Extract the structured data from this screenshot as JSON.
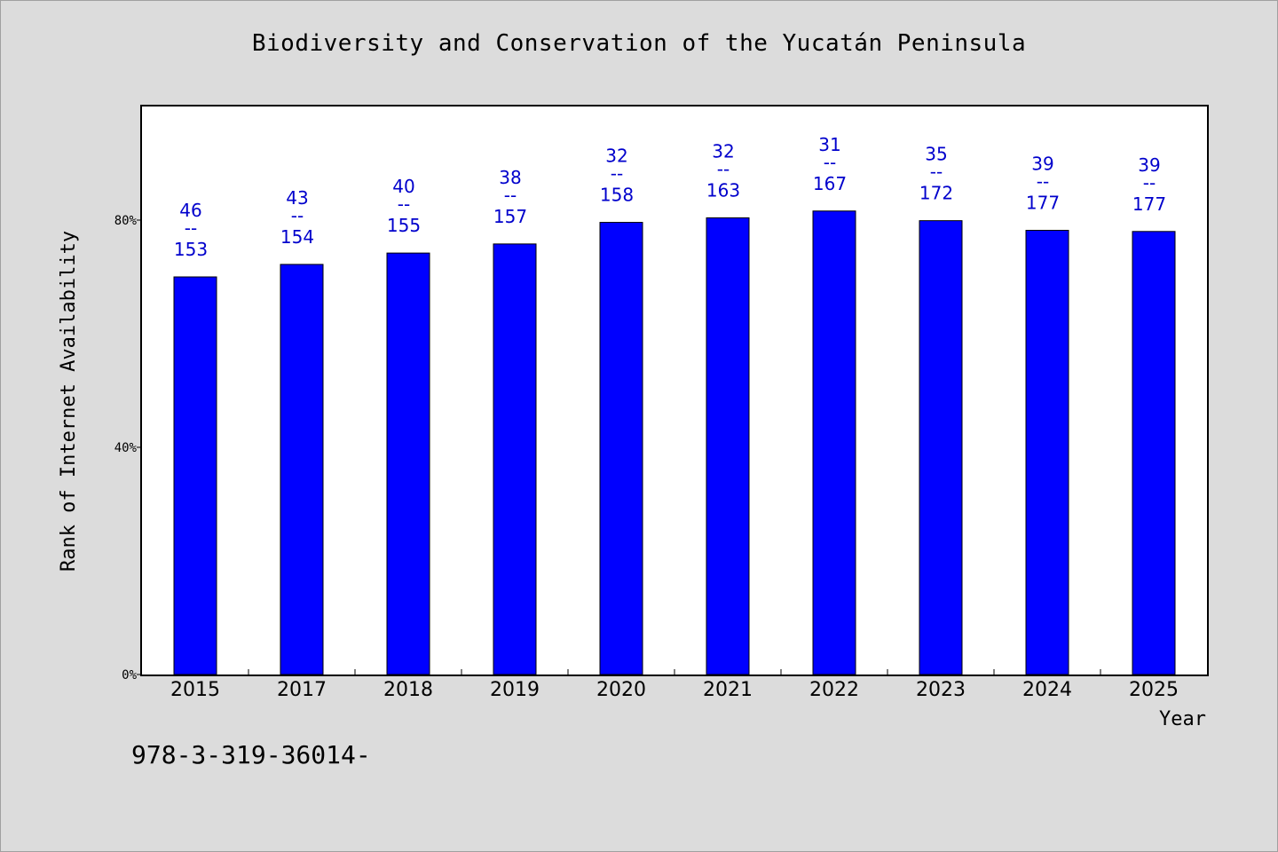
{
  "chart_data": {
    "type": "bar",
    "title": "Biodiversity and Conservation of the Yucatán Peninsula",
    "xlabel": "Year",
    "ylabel": "Rank of Internet Availability",
    "categories": [
      "2015",
      "2017",
      "2018",
      "2019",
      "2020",
      "2021",
      "2022",
      "2023",
      "2024",
      "2025"
    ],
    "values": [
      70,
      72.2,
      74.2,
      75.8,
      79.6,
      80.4,
      81.6,
      79.9,
      78.2,
      78
    ],
    "data_labels": [
      {
        "rank": "46",
        "sep": "--",
        "total": "153"
      },
      {
        "rank": "43",
        "sep": "--",
        "total": "154"
      },
      {
        "rank": "40",
        "sep": "--",
        "total": "155"
      },
      {
        "rank": "38",
        "sep": "--",
        "total": "157"
      },
      {
        "rank": "32",
        "sep": "--",
        "total": "158"
      },
      {
        "rank": "32",
        "sep": "--",
        "total": "163"
      },
      {
        "rank": "31",
        "sep": "--",
        "total": "167"
      },
      {
        "rank": "35",
        "sep": "--",
        "total": "172"
      },
      {
        "rank": "39",
        "sep": "--",
        "total": "177"
      },
      {
        "rank": "39",
        "sep": "--",
        "total": "177"
      }
    ],
    "ylim": [
      0,
      100
    ],
    "yticks": [
      0,
      40,
      80
    ],
    "ytick_labels": [
      "0%",
      "40%",
      "80%"
    ],
    "grid": false,
    "bar_color": "#0000ff",
    "label_color": "#0000cc"
  },
  "footer": {
    "code": "978-3-319-36014-"
  }
}
